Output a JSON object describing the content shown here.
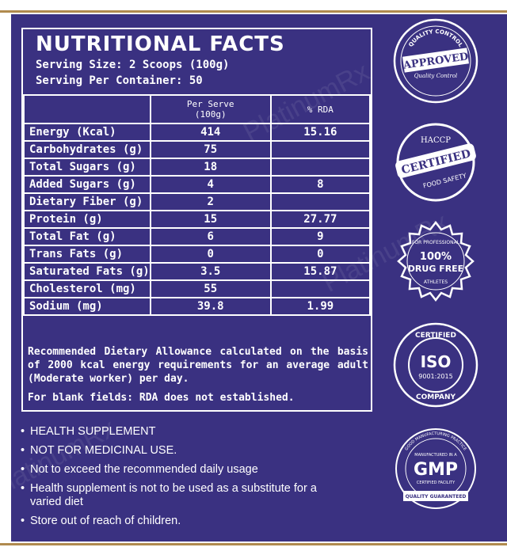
{
  "facts": {
    "title": "NUTRITIONAL FACTS",
    "serving_size": "Serving Size: 2 Scoops (100g)",
    "servings_per_container": "Serving Per Container: 50",
    "col_per_serve_line1": "Per Serve",
    "col_per_serve_line2": "(100g)",
    "col_rda": "% RDA",
    "rows": [
      {
        "label": "Energy (Kcal)",
        "per_serve": "414",
        "rda": "15.16"
      },
      {
        "label": "Carbohydrates (g)",
        "per_serve": "75",
        "rda": ""
      },
      {
        "label": "Total Sugars (g)",
        "per_serve": "18",
        "rda": ""
      },
      {
        "label": "Added Sugars (g)",
        "per_serve": "4",
        "rda": "8"
      },
      {
        "label": "Dietary Fiber (g)",
        "per_serve": "2",
        "rda": ""
      },
      {
        "label": "Protein (g)",
        "per_serve": "15",
        "rda": "27.77"
      },
      {
        "label": "Total Fat (g)",
        "per_serve": "6",
        "rda": "9"
      },
      {
        "label": "Trans Fats (g)",
        "per_serve": "0",
        "rda": "0"
      },
      {
        "label": "Saturated Fats (g)",
        "per_serve": "3.5",
        "rda": "15.87"
      },
      {
        "label": "Cholesterol (mg)",
        "per_serve": "55",
        "rda": ""
      },
      {
        "label": "Sodium (mg)",
        "per_serve": "39.8",
        "rda": "1.99"
      }
    ],
    "rda_note": "Recommended Dietary Allowance calculated on the basis of 2000 kcal energy requirements for an average adult (Moderate worker) per day.",
    "blank_note": "For blank fields: RDA does not established."
  },
  "bullets": [
    "HEALTH SUPPLEMENT",
    "NOT FOR MEDICINAL USE.",
    "Not to exceed the recommended daily usage",
    "Health supplement is not to be used as a substitute for a varied diet",
    "Store out of reach of children."
  ],
  "badges": {
    "approved": {
      "top_text": "QUALITY CONTROL",
      "main": "APPROVED",
      "sub": "Quality Control"
    },
    "haccp": {
      "top": "HACCP",
      "main": "CERTIFIED",
      "bottom": "FOOD SAFETY"
    },
    "drug_free": {
      "top": "FOR PROFESSIONAL",
      "main1": "100%",
      "main2": "DRUG FREE",
      "bottom": "ATHLETES"
    },
    "iso": {
      "top": "CERTIFIED",
      "main": "ISO",
      "code": "9001:2015",
      "bottom": "COMPANY"
    },
    "gmp": {
      "top": "GOOD MANUFACTURING PRACTICE",
      "small": "MANUFACTURED IN A",
      "main": "GMP",
      "sub": "CERTIFIED FACILITY",
      "ribbon": "QUALITY GUARANTEED"
    }
  },
  "watermark": "PlatinumRx",
  "colors": {
    "panel": "#3a3181",
    "text": "#ffffff",
    "accent_line": "#b08a4e"
  }
}
